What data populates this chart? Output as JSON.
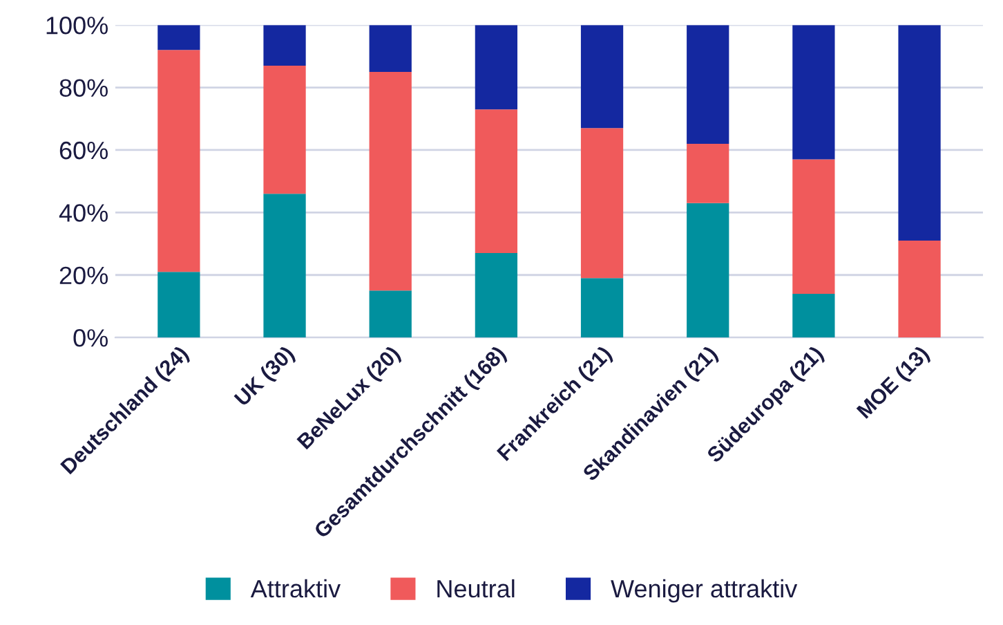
{
  "chart_data": {
    "type": "bar",
    "stacked": true,
    "categories": [
      "Deutschland (24)",
      "UK (30)",
      "BeNeLux (20)",
      "Gesamtdurchschnitt (168)",
      "Frankreich (21)",
      "Skandinavien (21)",
      "Südeuropa (21)",
      "MOE (13)"
    ],
    "series": [
      {
        "name": "Attraktiv",
        "color": "#00909e",
        "values": [
          21,
          46,
          15,
          27,
          19,
          43,
          14,
          0
        ]
      },
      {
        "name": "Neutral",
        "color": "#f05a5b",
        "values": [
          71,
          41,
          70,
          46,
          48,
          19,
          43,
          31
        ]
      },
      {
        "name": "Weniger attraktiv",
        "color": "#1428a0",
        "values": [
          8,
          13,
          15,
          27,
          33,
          38,
          43,
          69
        ]
      }
    ],
    "ylim": [
      0,
      100
    ],
    "yticks": [
      {
        "value": 0,
        "label": "0%"
      },
      {
        "value": 20,
        "label": "20%"
      },
      {
        "value": 40,
        "label": "40%"
      },
      {
        "value": 60,
        "label": "60%"
      },
      {
        "value": 80,
        "label": "80%"
      },
      {
        "value": 100,
        "label": "100%"
      }
    ],
    "grid": "y",
    "legend": "bottom"
  }
}
